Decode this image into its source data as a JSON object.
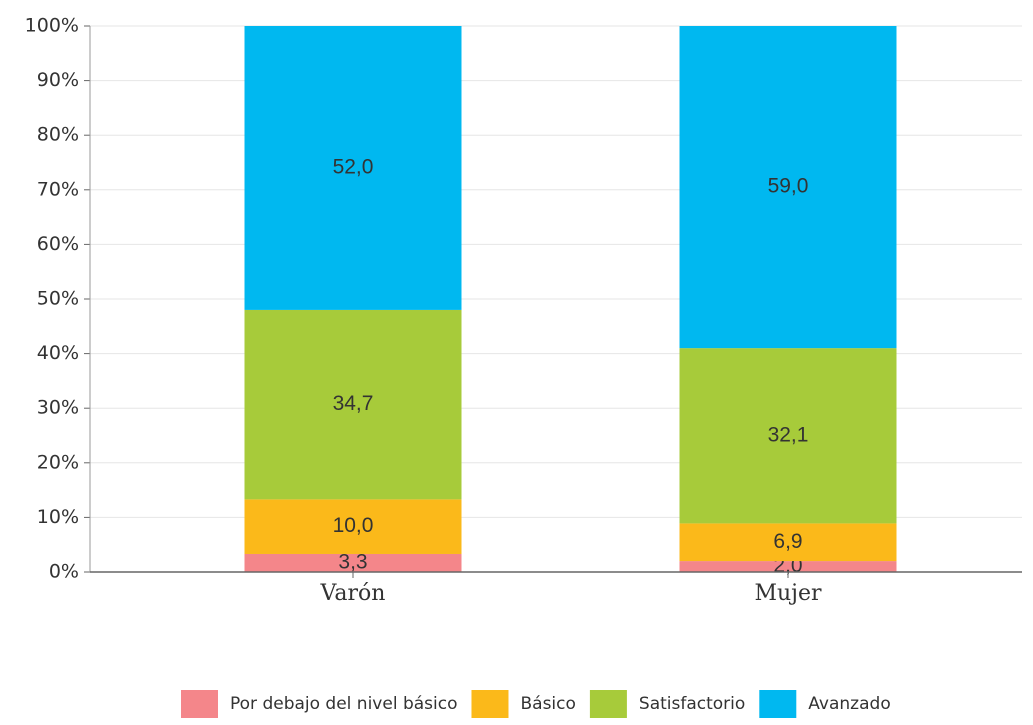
{
  "chart_data": {
    "type": "stacked_bar",
    "categories": [
      "Varón",
      "Mujer"
    ],
    "series": [
      {
        "name": "Por debajo del nivel básico",
        "color": "#f4868a",
        "values": [
          3.3,
          2.0
        ],
        "value_labels": [
          "3,3",
          "2,0"
        ]
      },
      {
        "name": "Básico",
        "color": "#fbb91a",
        "values": [
          10.0,
          6.9
        ],
        "value_labels": [
          "10,0",
          "6,9"
        ]
      },
      {
        "name": "Satisfactorio",
        "color": "#a7cb3a",
        "values": [
          34.7,
          32.1
        ],
        "value_labels": [
          "34,7",
          "32,1"
        ]
      },
      {
        "name": "Avanzado",
        "color": "#00b8f0",
        "values": [
          52.0,
          59.0
        ],
        "value_labels": [
          "52,0",
          "59,0"
        ]
      }
    ],
    "ylim": [
      0,
      100
    ],
    "yticks": [
      {
        "value": 0,
        "label": "0%"
      },
      {
        "value": 10,
        "label": "10%"
      },
      {
        "value": 20,
        "label": "20%"
      },
      {
        "value": 30,
        "label": "30%"
      },
      {
        "value": 40,
        "label": "40%"
      },
      {
        "value": 50,
        "label": "50%"
      },
      {
        "value": 60,
        "label": "60%"
      },
      {
        "value": 70,
        "label": "70%"
      },
      {
        "value": 80,
        "label": "80%"
      },
      {
        "value": 90,
        "label": "90%"
      },
      {
        "value": 100,
        "label": "100%"
      }
    ],
    "grid": true,
    "legend": "bottom"
  }
}
